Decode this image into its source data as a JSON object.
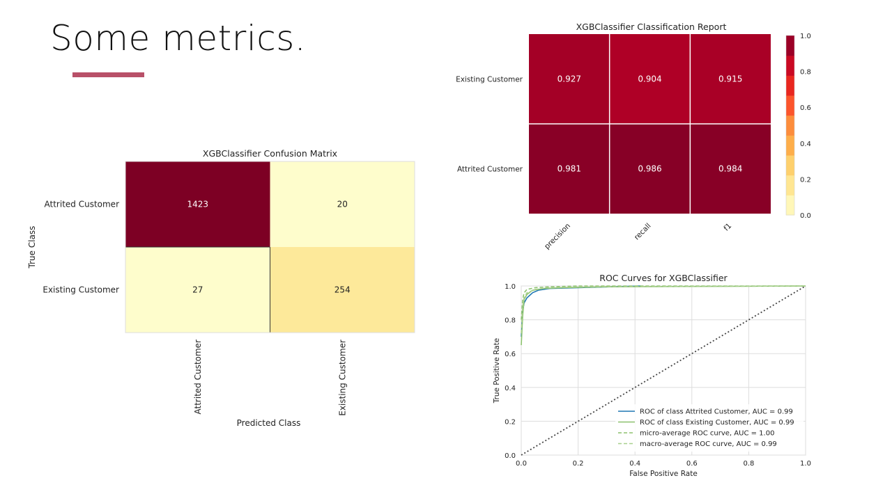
{
  "slide": {
    "title": "Some metrics."
  },
  "chart_data": [
    {
      "type": "heatmap",
      "title": "XGBClassifier Confusion Matrix",
      "xlabel": "Predicted Class",
      "ylabel": "True Class",
      "x_categories": [
        "Attrited Customer",
        "Existing Customer"
      ],
      "y_categories": [
        "Attrited Customer",
        "Existing Customer"
      ],
      "values": [
        [
          1423,
          20
        ],
        [
          27,
          254
        ]
      ],
      "colors": {
        "high": "#7d0024",
        "low": "#fefdcc",
        "mid_low": "#fde99a"
      }
    },
    {
      "type": "heatmap",
      "title": "XGBClassifier Classification Report",
      "x_categories": [
        "precision",
        "recall",
        "f1"
      ],
      "y_categories": [
        "Existing Customer",
        "Attrited Customer"
      ],
      "values": [
        [
          0.927,
          0.904,
          0.915
        ],
        [
          0.981,
          0.986,
          0.984
        ]
      ],
      "colorbar": {
        "min": 0.0,
        "max": 1.0,
        "ticks": [
          "0.0",
          "0.2",
          "0.4",
          "0.6",
          "0.8",
          "1.0"
        ]
      }
    },
    {
      "type": "line",
      "title": "ROC Curves for XGBClassifier",
      "xlabel": "False Positive Rate",
      "ylabel": "True Positive Rate",
      "xlim": [
        0,
        1
      ],
      "ylim": [
        0,
        1
      ],
      "xticks": [
        "0.0",
        "0.2",
        "0.4",
        "0.6",
        "0.8",
        "1.0"
      ],
      "yticks": [
        "0.0",
        "0.2",
        "0.4",
        "0.6",
        "0.8",
        "1.0"
      ],
      "grid": true,
      "legend_position": "bottom-right",
      "series": [
        {
          "name": "ROC of class Attrited Customer, AUC = 0.99",
          "color": "#1f77b4",
          "style": "solid",
          "x": [
            0,
            0.005,
            0.01,
            0.02,
            0.04,
            0.06,
            0.1,
            0.2,
            0.42
          ],
          "y": [
            0.7,
            0.85,
            0.9,
            0.93,
            0.96,
            0.975,
            0.985,
            0.99,
            1.0
          ]
        },
        {
          "name": "ROC of class Existing Customer, AUC = 0.99",
          "color": "#8dc26f",
          "style": "solid",
          "x": [
            0,
            0.005,
            0.01,
            0.02,
            0.04,
            0.08,
            0.15,
            0.3,
            1.0
          ],
          "y": [
            0.65,
            0.82,
            0.92,
            0.95,
            0.975,
            0.985,
            0.99,
            0.995,
            1.0
          ]
        },
        {
          "name": "micro-average ROC curve, AUC = 1.00",
          "color": "#8dc26f",
          "style": "dashed",
          "x": [
            0,
            0.005,
            0.01,
            0.02,
            0.05,
            0.1,
            0.2,
            1.0
          ],
          "y": [
            0.8,
            0.92,
            0.96,
            0.98,
            0.99,
            0.995,
            1.0,
            1.0
          ]
        },
        {
          "name": "macro-average ROC curve, AUC = 0.99",
          "color": "#a8d08d",
          "style": "dashed",
          "x": [
            0,
            0.005,
            0.01,
            0.02,
            0.05,
            0.1,
            0.2,
            1.0
          ],
          "y": [
            0.72,
            0.88,
            0.93,
            0.96,
            0.98,
            0.99,
            0.995,
            1.0
          ]
        },
        {
          "name": "",
          "color": "#444444",
          "style": "dotted",
          "x": [
            0,
            1
          ],
          "y": [
            0,
            1
          ]
        }
      ]
    }
  ]
}
